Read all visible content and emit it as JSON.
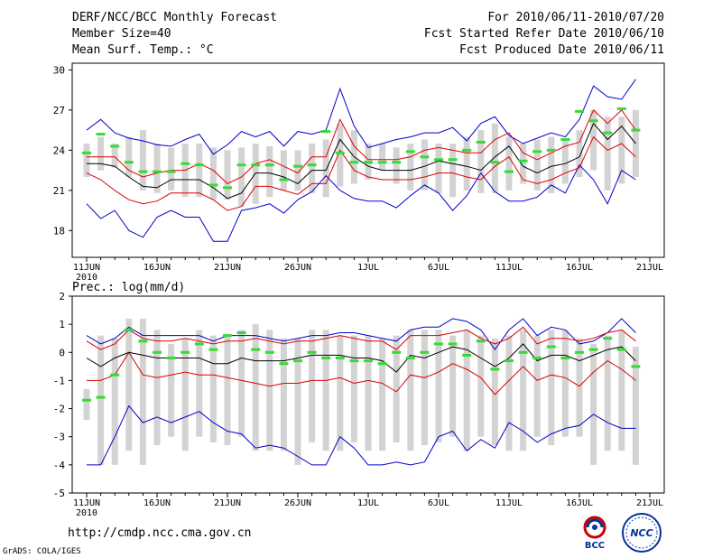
{
  "header": {
    "title": "DERF/NCC/BCC Monthly Forecast",
    "member_size": "Member Size=40",
    "variable": "Mean Surf. Temp.: °C",
    "period": "For 2010/06/11-2010/07/20",
    "started": "Fcst Started Refer Date 2010/06/10",
    "produced": "Fcst Produced Date 2010/06/11"
  },
  "footer": {
    "url": "http://cmdp.ncc.cma.gov.cn",
    "credit": "GrADS: COLA/IGES"
  },
  "logos": {
    "left": "BCC",
    "right": "NCC"
  },
  "colors": {
    "box": "#d3d3d3",
    "max": "#0000cc",
    "p80": "#dd0000",
    "mean": "#000000",
    "obs": "#33dd33",
    "frame": "#000000"
  },
  "chart_data": [
    {
      "type": "line",
      "title": "Mean Surf. Temp.: °C",
      "x_ticks": [
        "11JUN",
        "16JUN",
        "21JUN",
        "26JUN",
        "1JUL",
        "6JUL",
        "11JUL",
        "16JUL",
        "21JUL"
      ],
      "x_sub": "2010",
      "day_range": [
        0,
        40
      ],
      "ylim": [
        16,
        30.5
      ],
      "y_ticks": [
        18,
        21,
        24,
        27,
        30
      ],
      "box_low": [
        22.0,
        22.5,
        22.7,
        22.0,
        21.0,
        20.8,
        21.0,
        20.5,
        20.5,
        20.3,
        20.3,
        19.8,
        20.0,
        20.5,
        21.0,
        21.0,
        20.8,
        20.5,
        21.3,
        21.5,
        21.8,
        22.5,
        21.5,
        21.0,
        21.0,
        20.8,
        20.5,
        21.0,
        20.8,
        20.8,
        21.0,
        21.5,
        21.0,
        20.8,
        21.5,
        22.0,
        22.5,
        21.0,
        21.5,
        22.0
      ],
      "box_high": [
        24.5,
        25.0,
        24.5,
        25.0,
        25.5,
        24.5,
        24.2,
        24.5,
        24.5,
        24.2,
        24.0,
        24.2,
        24.5,
        24.3,
        24.0,
        24.0,
        24.5,
        24.8,
        26.0,
        25.5,
        24.5,
        24.5,
        24.2,
        24.5,
        24.8,
        24.5,
        24.5,
        25.0,
        25.5,
        26.0,
        25.0,
        24.5,
        24.8,
        25.0,
        24.8,
        25.5,
        27.0,
        26.5,
        26.5,
        27.0
      ],
      "mean": [
        23.0,
        23.0,
        22.8,
        22.0,
        21.3,
        21.2,
        21.8,
        21.8,
        21.8,
        21.2,
        20.4,
        20.8,
        22.3,
        22.3,
        22.0,
        21.5,
        22.5,
        22.5,
        24.8,
        23.5,
        22.8,
        22.5,
        22.5,
        22.5,
        22.8,
        23.2,
        23.0,
        22.8,
        22.5,
        23.5,
        24.3,
        22.8,
        22.3,
        22.8,
        23.0,
        23.5,
        26.0,
        24.8,
        25.8,
        24.5
      ],
      "p80_high": [
        23.5,
        23.5,
        23.5,
        22.5,
        22.0,
        22.3,
        22.5,
        22.5,
        23.0,
        22.5,
        21.5,
        22.0,
        23.0,
        23.3,
        22.8,
        22.3,
        23.5,
        23.5,
        26.3,
        24.3,
        23.3,
        23.3,
        23.3,
        23.5,
        24.0,
        24.2,
        24.0,
        23.8,
        23.8,
        24.8,
        25.3,
        23.8,
        23.3,
        23.8,
        24.3,
        24.6,
        27.0,
        26.0,
        27.0,
        25.5
      ],
      "p80_low": [
        22.3,
        21.8,
        21.0,
        20.3,
        20.0,
        20.2,
        20.8,
        20.8,
        20.8,
        20.3,
        19.5,
        19.8,
        21.3,
        21.3,
        21.0,
        20.7,
        21.5,
        21.5,
        24.0,
        22.5,
        22.0,
        21.8,
        21.8,
        21.8,
        22.0,
        22.3,
        22.3,
        22.0,
        21.8,
        22.8,
        23.5,
        21.8,
        21.5,
        21.8,
        22.3,
        22.7,
        25.0,
        24.0,
        24.5,
        23.5
      ],
      "max": [
        25.5,
        26.3,
        25.3,
        24.9,
        24.7,
        24.4,
        24.3,
        24.8,
        25.2,
        23.7,
        24.4,
        25.4,
        25.0,
        25.4,
        24.3,
        25.4,
        25.2,
        25.5,
        28.6,
        25.8,
        24.2,
        24.5,
        24.8,
        25.0,
        25.3,
        25.3,
        25.7,
        24.7,
        26.0,
        26.5,
        25.1,
        24.5,
        24.9,
        25.3,
        25.0,
        26.3,
        28.8,
        28.0,
        27.8,
        29.3
      ],
      "min": [
        20.0,
        18.9,
        19.5,
        18.0,
        17.5,
        19.0,
        19.5,
        19.0,
        19.0,
        17.2,
        17.2,
        19.5,
        19.7,
        20.0,
        19.3,
        20.3,
        20.9,
        22.1,
        21.0,
        20.4,
        20.2,
        20.2,
        19.7,
        20.6,
        21.4,
        20.8,
        19.5,
        20.6,
        22.3,
        20.9,
        20.2,
        20.2,
        20.5,
        21.4,
        20.8,
        22.9,
        21.8,
        20.0,
        22.5,
        21.8
      ],
      "obs": [
        23.8,
        25.2,
        24.3,
        23.1,
        22.4,
        22.4,
        22.4,
        23.0,
        22.9,
        21.4,
        21.2,
        22.9,
        22.9,
        22.9,
        21.8,
        22.8,
        22.9,
        25.4,
        23.8,
        23.1,
        23.1,
        23.1,
        23.1,
        23.9,
        23.5,
        23.3,
        23.3,
        24.0,
        24.6,
        23.1,
        22.4,
        23.2,
        23.9,
        24.0,
        24.8,
        26.9,
        26.2,
        25.3,
        27.1,
        25.5
      ]
    },
    {
      "type": "line",
      "title": "Prec.: log(mm/d)",
      "x_ticks": [
        "11JUN",
        "16JUN",
        "21JUN",
        "26JUN",
        "1JUL",
        "6JUL",
        "11JUL",
        "16JUL",
        "21JUL"
      ],
      "x_sub": "2010",
      "day_range": [
        0,
        40
      ],
      "ylim": [
        -5,
        2
      ],
      "y_ticks": [
        -5,
        -4,
        -3,
        -2,
        -1,
        0,
        1,
        2
      ],
      "box_low": [
        -2.4,
        -4,
        -4,
        -3.5,
        -4,
        -3.3,
        -3,
        -3.5,
        -3,
        -3.2,
        -3.3,
        -3,
        -3.5,
        -3.5,
        -3.5,
        -4,
        -3.2,
        -3.5,
        -3.5,
        -3.2,
        -3.5,
        -3.5,
        -3.2,
        -3.5,
        -3.3,
        -3.2,
        -3,
        -3.5,
        -3,
        -3.3,
        -3.5,
        -3.5,
        -3,
        -3.3,
        -3,
        -3,
        -4,
        -3.5,
        -3.5,
        -4
      ],
      "box_high": [
        -1.3,
        0.6,
        0.5,
        1.2,
        1.2,
        0.8,
        0.3,
        0.5,
        0.8,
        0.6,
        0.6,
        0.8,
        1.0,
        0.8,
        0.5,
        0.5,
        0.8,
        0.8,
        0.6,
        0.6,
        0.6,
        0.5,
        0.6,
        0.8,
        0.8,
        0.8,
        0.6,
        0.8,
        0.6,
        0.5,
        0.6,
        0.8,
        0.6,
        0.8,
        0.8,
        0.5,
        0.3,
        0.6,
        0.8,
        0.2
      ],
      "mean": [
        -0.2,
        -0.5,
        -0.2,
        0.0,
        -0.1,
        -0.2,
        -0.2,
        -0.2,
        -0.2,
        -0.4,
        -0.4,
        -0.2,
        -0.3,
        -0.3,
        -0.3,
        -0.2,
        -0.1,
        -0.1,
        -0.1,
        -0.2,
        -0.2,
        -0.3,
        -0.7,
        -0.1,
        -0.2,
        0.0,
        0.2,
        0.1,
        -0.2,
        -0.5,
        -0.2,
        0.3,
        -0.3,
        -0.1,
        -0.1,
        -0.3,
        -0.1,
        0.1,
        0.2,
        -0.3
      ],
      "p80_high": [
        0.4,
        0.1,
        0.3,
        0.8,
        0.5,
        0.4,
        0.4,
        0.5,
        0.4,
        0.3,
        0.4,
        0.4,
        0.5,
        0.4,
        0.3,
        0.4,
        0.4,
        0.5,
        0.6,
        0.5,
        0.4,
        0.4,
        0.1,
        0.6,
        0.6,
        0.6,
        0.7,
        0.8,
        0.5,
        0.3,
        0.5,
        0.9,
        0.3,
        0.5,
        0.5,
        0.4,
        0.5,
        0.7,
        0.8,
        0.4
      ],
      "p80_low": [
        -1.0,
        -1.0,
        -0.8,
        0.0,
        -0.8,
        -0.9,
        -0.8,
        -0.7,
        -0.8,
        -0.8,
        -0.9,
        -1.0,
        -1.1,
        -1.2,
        -1.1,
        -1.1,
        -1.0,
        -1.0,
        -0.9,
        -1.1,
        -1.0,
        -1.1,
        -1.4,
        -0.8,
        -0.9,
        -0.7,
        -0.4,
        -0.6,
        -0.9,
        -1.5,
        -1.0,
        -0.5,
        -1.0,
        -0.8,
        -0.9,
        -1.2,
        -0.7,
        -0.3,
        -0.6,
        -1.0
      ],
      "max": [
        0.6,
        0.3,
        0.5,
        0.9,
        0.6,
        0.6,
        0.6,
        0.6,
        0.6,
        0.4,
        0.6,
        0.6,
        0.6,
        0.5,
        0.4,
        0.5,
        0.6,
        0.6,
        0.7,
        0.7,
        0.6,
        0.5,
        0.4,
        0.8,
        0.9,
        0.9,
        1.2,
        1.1,
        0.8,
        0.1,
        0.8,
        1.2,
        0.6,
        0.9,
        0.8,
        0.3,
        0.4,
        0.7,
        1.2,
        0.7
      ],
      "min": [
        -4,
        -4,
        -3,
        -1.9,
        -2.5,
        -2.3,
        -2.5,
        -2.3,
        -2.1,
        -2.5,
        -2.8,
        -2.9,
        -3.4,
        -3.3,
        -3.4,
        -3.7,
        -4,
        -4,
        -3,
        -3.4,
        -4,
        -4,
        -3.9,
        -4,
        -3.9,
        -3,
        -2.8,
        -3.5,
        -3.1,
        -3.4,
        -2.5,
        -2.8,
        -3.2,
        -2.9,
        -2.7,
        -2.6,
        -2.2,
        -2.5,
        -2.7,
        -2.7
      ],
      "obs": [
        -1.7,
        -1.6,
        -0.8,
        0.8,
        0.4,
        0.0,
        -0.2,
        0.0,
        0.3,
        0.1,
        0.6,
        0.7,
        0.1,
        0.0,
        -0.4,
        -0.3,
        0.0,
        -0.2,
        -0.2,
        -0.3,
        -0.3,
        -0.4,
        0.0,
        -0.2,
        0.0,
        0.3,
        0.3,
        -0.1,
        0.4,
        -0.6,
        -0.3,
        0.0,
        -0.2,
        0.2,
        -0.2,
        0.0,
        0.1,
        0.5,
        0.1,
        -0.5
      ]
    }
  ]
}
